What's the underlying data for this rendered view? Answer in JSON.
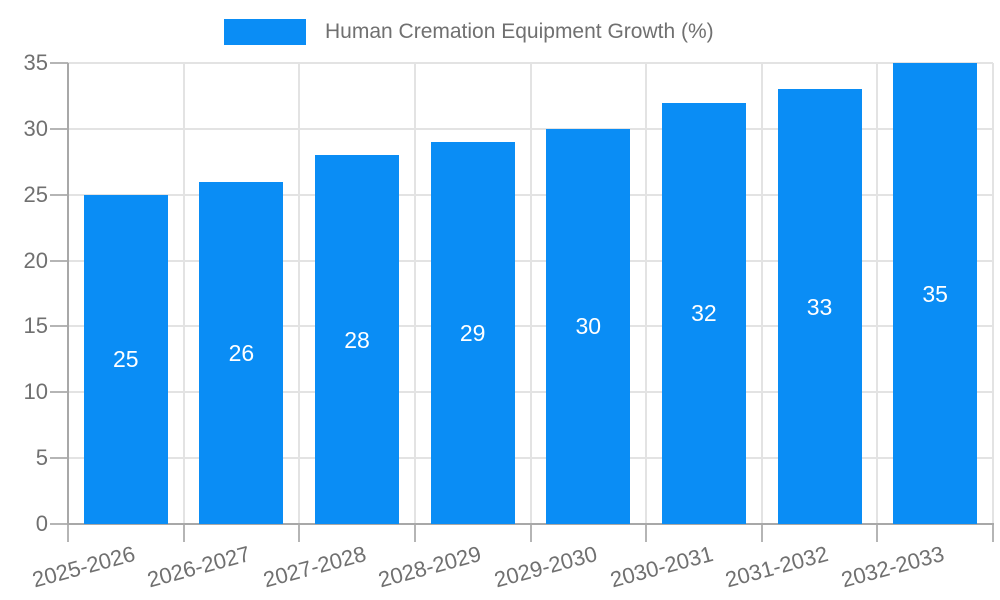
{
  "chart_data": {
    "type": "bar",
    "title": "Human Cremation Equipment Growth (%)",
    "categories": [
      "2025-2026",
      "2026-2027",
      "2027-2028",
      "2028-2029",
      "2029-2030",
      "2030-2031",
      "2031-2032",
      "2032-2033"
    ],
    "values": [
      25,
      26,
      28,
      29,
      30,
      32,
      33,
      35
    ],
    "xlabel": "",
    "ylabel": "",
    "ylim": [
      0,
      35
    ],
    "yticks": [
      0,
      5,
      10,
      15,
      20,
      25,
      30,
      35
    ],
    "grid": true,
    "legend": {
      "position": "top",
      "label": "Human Cremation Equipment Growth (%)"
    },
    "colors": {
      "bar": "#0A8DF5",
      "bar_label": "#FFFFFF",
      "axis_text": "#707070",
      "grid_line": "#E3E3E3",
      "axis_line": "#A8A8A8",
      "tick": "#B5B5B5",
      "background": "#FFFFFF"
    }
  }
}
